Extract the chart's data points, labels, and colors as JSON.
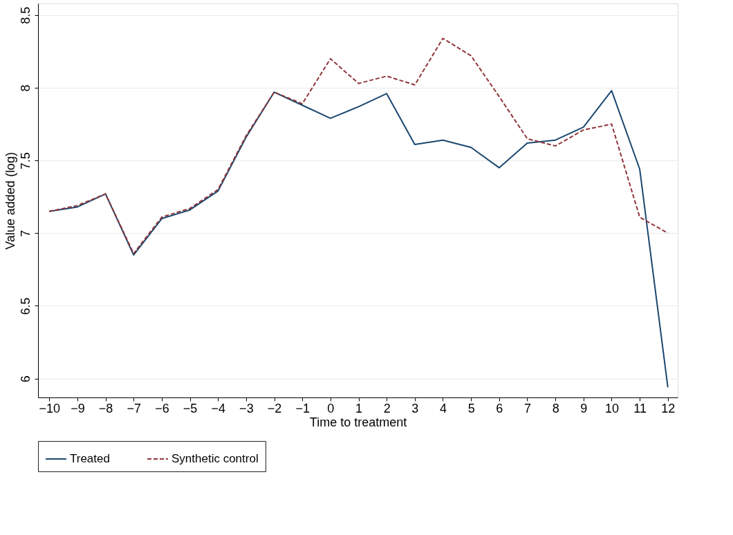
{
  "chart_data": {
    "type": "line",
    "xlabel": "Time to treatment",
    "ylabel": "Value added (log)",
    "x": [
      -10,
      -9,
      -8,
      -7,
      -6,
      -5,
      -4,
      -3,
      -2,
      -1,
      0,
      1,
      2,
      3,
      4,
      5,
      6,
      7,
      8,
      9,
      10,
      11,
      12
    ],
    "series": [
      {
        "name": "Treated",
        "color": "#1a476f",
        "line_style": "solid",
        "values": [
          7.15,
          7.18,
          7.27,
          6.85,
          7.1,
          7.16,
          7.29,
          7.66,
          7.97,
          7.88,
          7.79,
          7.87,
          7.96,
          7.61,
          7.64,
          7.59,
          7.45,
          7.62,
          7.64,
          7.73,
          7.98,
          7.44,
          5.94
        ]
      },
      {
        "name": "Synthetic control",
        "color": "#90353b",
        "line_style": "dashed",
        "values": [
          7.15,
          7.19,
          7.27,
          6.86,
          7.11,
          7.17,
          7.3,
          7.67,
          7.97,
          7.89,
          8.2,
          8.03,
          8.08,
          8.02,
          8.34,
          8.22,
          7.94,
          7.65,
          7.6,
          7.71,
          7.75,
          7.11,
          7.0
        ]
      }
    ],
    "xlim": [
      -10.4,
      12.35
    ],
    "xticks": [
      -10,
      -9,
      -8,
      -7,
      -6,
      -5,
      -4,
      -3,
      -2,
      -1,
      0,
      1,
      2,
      3,
      4,
      5,
      6,
      7,
      8,
      9,
      10,
      11,
      12
    ],
    "ylim": [
      5.87,
      8.58
    ],
    "yticks": [
      6,
      6.5,
      7,
      7.5,
      8,
      8.5
    ],
    "grid": "y",
    "legend": "bottom"
  }
}
